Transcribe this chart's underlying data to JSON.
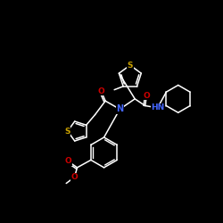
{
  "background_color": "#000000",
  "bond_color": "#ffffff",
  "atom_colors": {
    "S": "#c8a000",
    "O": "#cc0000",
    "N": "#4466ff",
    "C": "#ffffff"
  },
  "figsize": [
    2.5,
    2.5
  ],
  "dpi": 100
}
